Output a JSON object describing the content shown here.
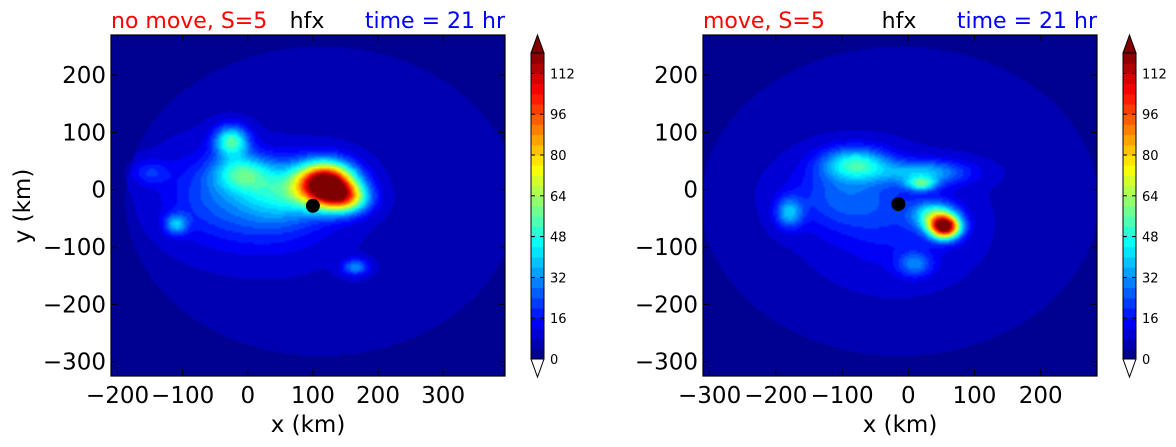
{
  "chart_data": [
    {
      "type": "heatmap",
      "title_left": "no move, S=5",
      "title_center": "hfx",
      "title_right": "time = 21 hr",
      "title_colors": {
        "left": "#ff0000",
        "center": "#000000",
        "right": "#0000ff"
      },
      "xlabel": "x (km)",
      "ylabel": "y (km)",
      "xlim": [
        -210,
        395
      ],
      "ylim": [
        -325,
        270
      ],
      "xticks": [
        -200,
        -100,
        0,
        100,
        200,
        300
      ],
      "yticks": [
        200,
        100,
        0,
        -100,
        -200,
        -300
      ],
      "center_marker": {
        "x": 100,
        "y": -28
      },
      "blobs": [
        {
          "x": 120,
          "y": 10,
          "sx": 30,
          "sy": 25,
          "amp": 125
        },
        {
          "x": 150,
          "y": -15,
          "sx": 25,
          "sy": 18,
          "amp": 55
        },
        {
          "x": -25,
          "y": 85,
          "sx": 18,
          "sy": 18,
          "amp": 45
        },
        {
          "x": -10,
          "y": 30,
          "sx": 30,
          "sy": 22,
          "amp": 32
        },
        {
          "x": 50,
          "y": 0,
          "sx": 45,
          "sy": 35,
          "amp": 28
        },
        {
          "x": 30,
          "y": -40,
          "sx": 70,
          "sy": 50,
          "amp": 14
        },
        {
          "x": -110,
          "y": -60,
          "sx": 12,
          "sy": 12,
          "amp": 28
        },
        {
          "x": 165,
          "y": -135,
          "sx": 14,
          "sy": 10,
          "amp": 24
        },
        {
          "x": -150,
          "y": 30,
          "sx": 20,
          "sy": 15,
          "amp": 12
        },
        {
          "x": -60,
          "y": -5,
          "sx": 50,
          "sy": 50,
          "amp": 12
        }
      ]
    },
    {
      "type": "heatmap",
      "title_left": "move, S=5",
      "title_center": "hfx",
      "title_right": "time = 21 hr",
      "title_colors": {
        "left": "#ff0000",
        "center": "#000000",
        "right": "#0000ff"
      },
      "xlabel": "x (km)",
      "ylabel": "",
      "xlim": [
        -310,
        285
      ],
      "ylim": [
        -325,
        270
      ],
      "xticks": [
        -300,
        -200,
        -100,
        0,
        100,
        200
      ],
      "yticks": [
        200,
        100,
        0,
        -100,
        -200,
        -300
      ],
      "center_marker": {
        "x": -15,
        "y": -25
      },
      "blobs": [
        {
          "x": 55,
          "y": -65,
          "sx": 16,
          "sy": 14,
          "amp": 110
        },
        {
          "x": 40,
          "y": -45,
          "sx": 22,
          "sy": 16,
          "amp": 40
        },
        {
          "x": -80,
          "y": 45,
          "sx": 35,
          "sy": 20,
          "amp": 38
        },
        {
          "x": 25,
          "y": 30,
          "sx": 45,
          "sy": 15,
          "amp": 28
        },
        {
          "x": 20,
          "y": 10,
          "sx": 15,
          "sy": 8,
          "amp": 35
        },
        {
          "x": -180,
          "y": -40,
          "sx": 14,
          "sy": 18,
          "amp": 28
        },
        {
          "x": -100,
          "y": -10,
          "sx": 55,
          "sy": 40,
          "amp": 16
        },
        {
          "x": 10,
          "y": -130,
          "sx": 18,
          "sy": 15,
          "amp": 20
        },
        {
          "x": -20,
          "y": -60,
          "sx": 70,
          "sy": 60,
          "amp": 10
        }
      ]
    }
  ],
  "colorbar": {
    "levels": [
      0,
      4,
      8,
      12,
      16,
      20,
      24,
      28,
      32,
      36,
      40,
      44,
      48,
      52,
      56,
      60,
      64,
      68,
      72,
      76,
      80,
      84,
      88,
      92,
      96,
      100,
      104,
      108,
      112,
      116,
      120
    ],
    "tick_labels": [
      "0",
      "16",
      "32",
      "48",
      "64",
      "80",
      "96",
      "112"
    ],
    "under_color": "#ffffff",
    "over_color": "#7f0000"
  }
}
